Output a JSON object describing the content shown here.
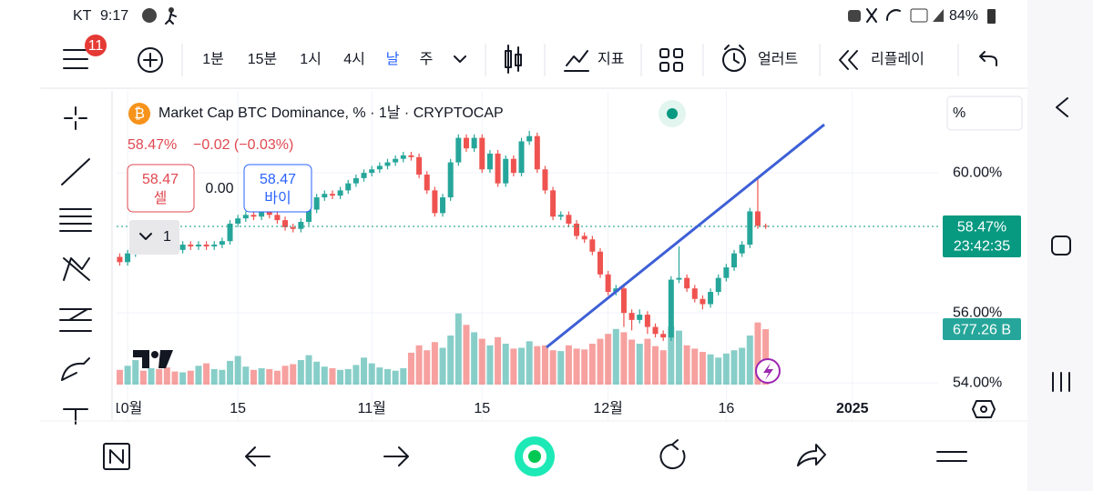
{
  "status_bar": {
    "carrier": "KT",
    "time": "9:17",
    "battery": "84%"
  },
  "toolbar": {
    "badge": "11",
    "intervals": [
      "1분",
      "15분",
      "1시",
      "4시",
      "날",
      "주"
    ],
    "active_interval": 4,
    "indicators": "지표",
    "alerts": "얼러트",
    "replay": "리플레이"
  },
  "chart_data": {
    "type": "candlestick",
    "title": "Market Cap BTC Dominance, % · 1날 · CRYPTOCAP",
    "legend_price": "58.47%",
    "legend_change": "−0.02 (−0.03%)",
    "sell": {
      "price": "58.47",
      "label": "셀"
    },
    "spread": "0.00",
    "buy": {
      "price": "58.47",
      "label": "바이"
    },
    "layout_count": "1",
    "scale_label": "%",
    "last_price_label": "58.47%",
    "countdown": "23:42:35",
    "volume_label": "677.26 B",
    "up_color": "#26a69a",
    "down_color": "#ef5350",
    "grid": true,
    "xlim": [
      -1.4,
      102.9
    ],
    "xticks": [
      {
        "value": 0,
        "label": "10월"
      },
      {
        "value": 14,
        "label": "15"
      },
      {
        "value": 31,
        "label": "11월"
      },
      {
        "value": 45,
        "label": "15"
      },
      {
        "value": 61,
        "label": "12월"
      },
      {
        "value": 76,
        "label": "16"
      },
      {
        "value": 92,
        "label": "2025"
      }
    ],
    "ylim": [
      52.94,
      62.34
    ],
    "yticks": [
      {
        "value": 54,
        "label": "54.00%"
      },
      {
        "value": 56,
        "label": "56.00%"
      },
      {
        "value": 60,
        "label": "60.00%"
      }
    ],
    "x": [
      -1,
      0,
      1,
      2,
      3,
      4,
      5,
      6,
      7,
      8,
      9,
      10,
      11,
      12,
      13,
      14,
      15,
      16,
      17,
      18,
      19,
      20,
      21,
      22,
      23,
      24,
      25,
      26,
      27,
      28,
      29,
      30,
      31,
      32,
      33,
      34,
      35,
      36,
      37,
      38,
      39,
      40,
      41,
      42,
      43,
      44,
      45,
      46,
      47,
      48,
      49,
      50,
      51,
      52,
      53,
      54,
      55,
      56,
      57,
      58,
      59,
      60,
      61,
      62,
      63,
      64,
      65,
      66,
      67,
      68,
      69,
      70,
      71,
      72,
      73,
      74,
      75,
      76,
      77,
      78,
      79,
      80,
      81
    ],
    "open": [
      57.6,
      57.45,
      57.7,
      58.05,
      57.95,
      58.1,
      58.0,
      57.85,
      57.8,
      57.95,
      57.9,
      57.95,
      57.9,
      57.95,
      58.05,
      58.55,
      58.7,
      58.8,
      58.75,
      58.9,
      58.8,
      58.65,
      58.45,
      58.4,
      58.6,
      58.95,
      59.3,
      59.4,
      59.35,
      59.5,
      59.7,
      59.85,
      60.0,
      60.1,
      60.2,
      60.3,
      60.4,
      60.5,
      60.45,
      59.95,
      59.5,
      58.85,
      59.3,
      60.3,
      61.0,
      60.7,
      61.0,
      60.1,
      60.55,
      59.7,
      60.4,
      60.0,
      60.9,
      61.05,
      60.1,
      59.5,
      58.75,
      58.8,
      58.55,
      58.2,
      58.1,
      57.75,
      57.1,
      56.6,
      56.7,
      56.0,
      55.8,
      55.95,
      55.6,
      55.4,
      55.3,
      56.95,
      57.0,
      56.7,
      56.4,
      56.25,
      56.6,
      57.0,
      57.3,
      57.7,
      57.95,
      58.9,
      58.49
    ],
    "high": [
      57.7,
      57.8,
      58.15,
      58.15,
      58.2,
      58.2,
      58.1,
      57.95,
      58.05,
      58.05,
      58.05,
      58.05,
      58.05,
      58.15,
      58.65,
      58.8,
      58.9,
      58.9,
      59.0,
      59.0,
      58.9,
      58.75,
      58.55,
      58.7,
      59.05,
      59.4,
      59.5,
      59.5,
      59.6,
      59.8,
      59.95,
      60.1,
      60.2,
      60.3,
      60.4,
      60.5,
      60.6,
      60.6,
      60.55,
      60.05,
      59.6,
      59.4,
      60.4,
      61.1,
      61.1,
      61.1,
      61.1,
      60.65,
      60.65,
      60.5,
      60.5,
      61.0,
      61.2,
      61.15,
      60.2,
      59.6,
      58.9,
      58.9,
      58.65,
      58.3,
      58.2,
      57.85,
      57.2,
      56.8,
      56.8,
      56.1,
      56.1,
      56.05,
      55.7,
      55.5,
      57.05,
      57.9,
      57.1,
      56.8,
      56.5,
      56.7,
      57.1,
      57.4,
      57.8,
      58.05,
      59.0,
      59.87,
      58.55
    ],
    "low": [
      57.35,
      57.35,
      57.6,
      57.85,
      57.85,
      57.9,
      57.75,
      57.7,
      57.7,
      57.8,
      57.8,
      57.8,
      57.8,
      57.85,
      57.95,
      58.45,
      58.6,
      58.65,
      58.65,
      58.7,
      58.55,
      58.35,
      58.3,
      58.3,
      58.5,
      58.85,
      59.2,
      59.25,
      59.25,
      59.4,
      59.6,
      59.75,
      59.9,
      60.0,
      60.1,
      60.2,
      60.3,
      60.35,
      59.85,
      59.4,
      58.75,
      58.75,
      59.2,
      60.2,
      60.6,
      60.6,
      60.0,
      60.0,
      59.6,
      59.6,
      59.9,
      59.9,
      60.8,
      60.0,
      59.4,
      58.65,
      58.65,
      58.45,
      58.1,
      58.0,
      57.65,
      57.0,
      56.5,
      56.5,
      55.6,
      55.5,
      55.7,
      55.4,
      55.3,
      55.2,
      55.2,
      56.85,
      56.6,
      56.3,
      56.1,
      56.15,
      56.5,
      56.9,
      57.2,
      57.6,
      57.85,
      58.4,
      58.4
    ],
    "close": [
      57.45,
      57.7,
      58.05,
      57.95,
      58.1,
      58.0,
      57.85,
      57.8,
      57.95,
      57.9,
      57.95,
      57.9,
      57.95,
      58.05,
      58.55,
      58.7,
      58.8,
      58.75,
      58.9,
      58.8,
      58.65,
      58.45,
      58.4,
      58.6,
      58.95,
      59.3,
      59.4,
      59.35,
      59.5,
      59.7,
      59.85,
      60.0,
      60.1,
      60.2,
      60.3,
      60.4,
      60.5,
      60.45,
      59.95,
      59.5,
      58.85,
      59.3,
      60.3,
      61.0,
      60.7,
      61.0,
      60.1,
      60.55,
      59.7,
      60.4,
      60.0,
      60.9,
      61.05,
      60.1,
      59.5,
      58.75,
      58.8,
      58.55,
      58.2,
      58.1,
      57.75,
      57.1,
      56.6,
      56.7,
      56.0,
      55.8,
      55.95,
      55.6,
      55.4,
      55.3,
      56.95,
      57.0,
      56.7,
      56.4,
      56.25,
      56.6,
      57.0,
      57.3,
      57.7,
      57.95,
      58.9,
      58.49,
      58.47
    ],
    "volume": [
      180,
      230,
      300,
      170,
      200,
      190,
      210,
      160,
      150,
      170,
      230,
      260,
      190,
      180,
      290,
      350,
      220,
      180,
      200,
      190,
      170,
      230,
      250,
      300,
      360,
      280,
      220,
      200,
      180,
      190,
      240,
      330,
      260,
      210,
      190,
      170,
      200,
      390,
      480,
      420,
      520,
      450,
      600,
      870,
      730,
      640,
      560,
      480,
      580,
      500,
      440,
      450,
      530,
      470,
      480,
      420,
      410,
      480,
      440,
      430,
      500,
      560,
      620,
      680,
      640,
      550,
      500,
      560,
      470,
      420,
      710,
      660,
      480,
      440,
      400,
      370,
      330,
      380,
      420,
      450,
      600,
      760,
      677.26
    ]
  }
}
